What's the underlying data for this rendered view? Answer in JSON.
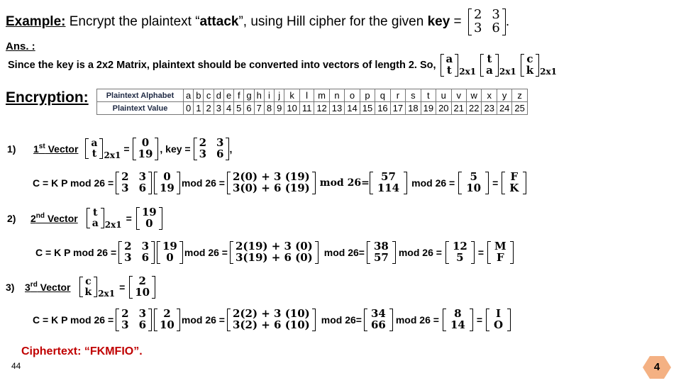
{
  "title": {
    "example_label": "Example:",
    "text_before": " Encrypt the plaintext “",
    "plain_word": "attack",
    "text_middle": "”, using Hill cipher for the given ",
    "key_word": "key",
    "text_eq": " =",
    "key_matrix": [
      [
        "2",
        "3"
      ],
      [
        "3",
        "6"
      ]
    ],
    "period": "."
  },
  "ans_label": "Ans. :",
  "intro": {
    "text": "Since the key is a 2x2 Matrix, plaintext should be converted into vectors of length 2. So,",
    "vectors": [
      [
        "a",
        "t"
      ],
      [
        "t",
        "a"
      ],
      [
        "c",
        "k"
      ]
    ],
    "sub": "2x1"
  },
  "encryption_label": "Encryption:",
  "table": {
    "row1_header": "Plaintext Alphabet",
    "row2_header": "Plaintext Value",
    "letters": [
      "a",
      "b",
      "c",
      "d",
      "e",
      "f",
      "g",
      "h",
      "i",
      "j",
      "k",
      "l",
      "m",
      "n",
      "o",
      "p",
      "q",
      "r",
      "s",
      "t",
      "u",
      "v",
      "w",
      "x",
      "y",
      "z"
    ],
    "values": [
      "0",
      "1",
      "2",
      "3",
      "4",
      "5",
      "6",
      "7",
      "8",
      "9",
      "10",
      "11",
      "12",
      "13",
      "14",
      "15",
      "16",
      "17",
      "18",
      "19",
      "20",
      "21",
      "22",
      "23",
      "24",
      "25"
    ]
  },
  "steps": [
    {
      "num": "1)",
      "ord": "1",
      "sup": "st",
      "label": " Vector",
      "vec_letters": [
        "a",
        "t"
      ],
      "sub": "2x1",
      "vec_values": [
        "0",
        "19"
      ],
      "key_text": ", key =",
      "key": [
        [
          "2",
          "3"
        ],
        [
          "3",
          "6"
        ]
      ],
      "trail": ",",
      "formula": "C = K P mod 26 =",
      "mod1": "mod 26 =",
      "expr": [
        "2(0) + 3 (19)",
        "3(0) + 6 (19)"
      ],
      "mod2": "mod 26=",
      "product": [
        "57",
        "114"
      ],
      "mod3": "mod 26 =",
      "result": [
        "5",
        "10"
      ],
      "eq": "=",
      "cipher": [
        "F",
        "K"
      ]
    },
    {
      "num": "2)",
      "ord": "2",
      "sup": "nd",
      "label": " Vector",
      "vec_letters": [
        "t",
        "a"
      ],
      "sub": "2x1",
      "vec_values": [
        "19",
        "0"
      ],
      "formula": "C = K P mod 26 =",
      "mod1": "mod 26 =",
      "expr": [
        "2(19) + 3 (0)",
        "3(19) + 6 (0)"
      ],
      "mod2": "mod 26=",
      "product": [
        "38",
        "57"
      ],
      "mod3": "mod 26 =",
      "result": [
        "12",
        "5"
      ],
      "eq": "=",
      "cipher": [
        "M",
        "F"
      ]
    },
    {
      "num": "3)",
      "ord": "3",
      "sup": "rd",
      "label": " Vector",
      "vec_letters": [
        "c",
        "k"
      ],
      "sub": "2x1",
      "vec_values": [
        "2",
        "10"
      ],
      "formula": "C = K P mod 26 =",
      "mod1": "mod 26 =",
      "expr": [
        "2(2) + 3 (10)",
        "3(2) + 6 (10)"
      ],
      "mod2": "mod 26=",
      "product": [
        "34",
        "66"
      ],
      "mod3": "mod 26 =",
      "result": [
        "8",
        "14"
      ],
      "eq": "=",
      "cipher": [
        "I",
        "O"
      ]
    }
  ],
  "ciphertext": "Ciphertext: “FKMFIO”.",
  "footer_number": "44",
  "page_badge": "4",
  "colors": {
    "ciphertext": "#c00000",
    "badge_fill": "#f4b183",
    "badge_text": "#000000",
    "table_header": "#1f2a44"
  }
}
